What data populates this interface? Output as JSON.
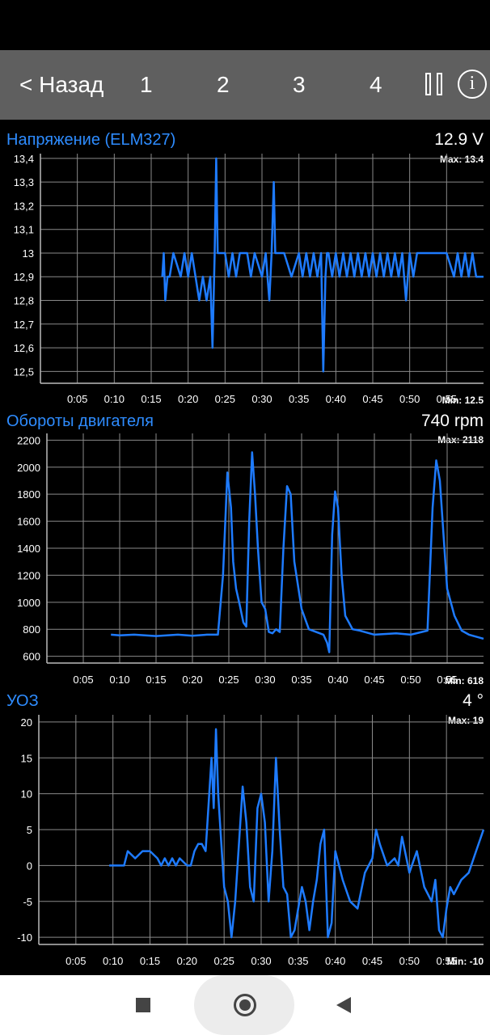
{
  "toolbar": {
    "back_label": "< Назад",
    "tabs": [
      "1",
      "2",
      "3",
      "4"
    ],
    "pause_icon": "pause-icon",
    "info_label": "i"
  },
  "colors": {
    "series": "#1e7bff",
    "title": "#2e8cff",
    "toolbar": "#5f5f5f",
    "grid": "#8a8a8a"
  },
  "panels": [
    {
      "title": "Напряжение (ELM327)",
      "value": "12.9  V",
      "max_label": "Max: 13.4",
      "min_label": "Min: 12.5"
    },
    {
      "title": "Обороты двигателя",
      "value": "740  rpm",
      "max_label": "Max: 2118",
      "min_label": "Min: 618"
    },
    {
      "title": "УОЗ",
      "value": "4  °",
      "max_label": "Max: 19",
      "min_label": "Min: -10"
    }
  ],
  "chart_data": [
    {
      "type": "line",
      "title": "Напряжение (ELM327)",
      "xlim": [
        0,
        60
      ],
      "ylim": [
        12.45,
        13.42
      ],
      "x_ticks": [
        "0:05",
        "0:10",
        "0:15",
        "0:20",
        "0:25",
        "0:30",
        "0:35",
        "0:40",
        "0:45",
        "0:50",
        "0:55"
      ],
      "y_ticks": [
        "12,5",
        "12,6",
        "12,7",
        "12,8",
        "12,9",
        "13",
        "13,1",
        "13,2",
        "13,3",
        "13,4"
      ],
      "y_tick_values": [
        12.5,
        12.6,
        12.7,
        12.8,
        12.9,
        13.0,
        13.1,
        13.2,
        13.3,
        13.4
      ],
      "grid": true,
      "series": [
        {
          "x": [
            16.5,
            16.7,
            16.9,
            17.2,
            17.5,
            18,
            19,
            19.5,
            20,
            20.5,
            21,
            21.5,
            22,
            22.5,
            23,
            23.3,
            23.6,
            23.8,
            24,
            24.2,
            24.5,
            25,
            25.5,
            26,
            26.5,
            27,
            27.5,
            28,
            28.5,
            29,
            30,
            30.5,
            31,
            31.3,
            31.6,
            31.8,
            32,
            32.5,
            33,
            34,
            35,
            35.5,
            36,
            36.5,
            37,
            37.5,
            38,
            38.3,
            38.6,
            38.8,
            39,
            39.5,
            40,
            40.5,
            41,
            41.5,
            42,
            42.5,
            43,
            43.5,
            44,
            44.5,
            45,
            45.5,
            46,
            46.5,
            47,
            47.5,
            48,
            48.5,
            49,
            49.5,
            50,
            50.5,
            51,
            51.5,
            52,
            53,
            54,
            55,
            56,
            56.5,
            57,
            57.5,
            58,
            58.5,
            59,
            60
          ],
          "y": [
            12.9,
            13.0,
            12.8,
            12.9,
            12.9,
            13.0,
            12.9,
            13.0,
            12.9,
            13.0,
            12.9,
            12.8,
            12.9,
            12.8,
            12.9,
            12.6,
            13.0,
            13.4,
            13.0,
            13.0,
            13.0,
            13.0,
            12.9,
            13.0,
            12.9,
            13.0,
            13.0,
            13.0,
            12.9,
            13.0,
            12.9,
            13.0,
            12.8,
            13.0,
            13.3,
            13.0,
            13.0,
            13.0,
            13.0,
            12.9,
            13.0,
            12.9,
            13.0,
            12.9,
            13.0,
            12.9,
            13.0,
            12.5,
            12.9,
            13.0,
            13.0,
            12.9,
            13.0,
            12.9,
            13.0,
            12.9,
            13.0,
            12.9,
            13.0,
            12.9,
            13.0,
            12.9,
            13.0,
            12.9,
            13.0,
            12.9,
            13.0,
            12.9,
            13.0,
            12.9,
            13.0,
            12.8,
            13.0,
            12.9,
            13.0,
            13.0,
            13.0,
            13.0,
            13.0,
            13.0,
            12.9,
            13.0,
            12.9,
            13.0,
            12.9,
            13.0,
            12.9,
            12.9
          ]
        }
      ]
    },
    {
      "type": "line",
      "title": "Обороты двигателя",
      "xlim": [
        0,
        60
      ],
      "ylim": [
        550,
        2250
      ],
      "x_ticks": [
        "0:05",
        "0:10",
        "0:15",
        "0:20",
        "0:25",
        "0:30",
        "0:35",
        "0:40",
        "0:45",
        "0:50",
        "0:55"
      ],
      "y_ticks": [
        "600",
        "800",
        "1000",
        "1200",
        "1400",
        "1600",
        "1800",
        "2000",
        "2200"
      ],
      "y_tick_values": [
        600,
        800,
        1000,
        1200,
        1400,
        1600,
        1800,
        2000,
        2200
      ],
      "grid": true,
      "series": [
        {
          "x": [
            8.8,
            10,
            12,
            15,
            18,
            20,
            22,
            23.5,
            24.2,
            24.8,
            25.3,
            25.6,
            26,
            26.5,
            27,
            27.4,
            27.8,
            28.2,
            28.6,
            29,
            29.5,
            30,
            30.5,
            31,
            31.5,
            32,
            32.5,
            33,
            33.5,
            34,
            35,
            36,
            37,
            38,
            38.5,
            38.8,
            39.2,
            39.6,
            40,
            40.5,
            41,
            42,
            43,
            45,
            48,
            50,
            51.5,
            52.3,
            53,
            53.5,
            54,
            54.5,
            55,
            56,
            57,
            58,
            60
          ],
          "y": [
            760,
            755,
            760,
            750,
            760,
            752,
            760,
            760,
            1200,
            1960,
            1700,
            1300,
            1100,
            980,
            850,
            820,
            1600,
            2110,
            1800,
            1400,
            1000,
            950,
            780,
            770,
            800,
            780,
            1400,
            1860,
            1800,
            1300,
            950,
            800,
            780,
            760,
            700,
            630,
            1500,
            1820,
            1700,
            1200,
            900,
            800,
            790,
            760,
            770,
            760,
            780,
            790,
            1700,
            2050,
            1900,
            1500,
            1100,
            900,
            790,
            760,
            730
          ]
        }
      ]
    },
    {
      "type": "line",
      "title": "УОЗ",
      "xlim": [
        0,
        60
      ],
      "ylim": [
        -11,
        21
      ],
      "x_ticks": [
        "0:05",
        "0:10",
        "0:15",
        "0:20",
        "0:25",
        "0:30",
        "0:35",
        "0:40",
        "0:45",
        "0:50",
        "0:55"
      ],
      "y_ticks": [
        "-10",
        "-5",
        "0",
        "5",
        "10",
        "15",
        "20"
      ],
      "y_tick_values": [
        -10,
        -5,
        0,
        5,
        10,
        15,
        20
      ],
      "grid": true,
      "series": [
        {
          "x": [
            9.5,
            11,
            11.5,
            12,
            13,
            14,
            15,
            16,
            16.5,
            17,
            17.5,
            18,
            18.5,
            19,
            20,
            20.5,
            21,
            21.5,
            22,
            22.5,
            23,
            23.3,
            23.6,
            23.9,
            24.2,
            24.5,
            25,
            25.5,
            26,
            26.5,
            27,
            27.5,
            28,
            28.5,
            29,
            29.5,
            30,
            30.5,
            31,
            31.5,
            32,
            32.5,
            33,
            33.5,
            34,
            34.5,
            35,
            35.5,
            36,
            36.5,
            37,
            37.5,
            38,
            38.5,
            39,
            39.5,
            40,
            41,
            42,
            43,
            44,
            45,
            45.5,
            46,
            47,
            48,
            48.5,
            49,
            50,
            51,
            52,
            53,
            53.5,
            54,
            54.5,
            55,
            55.5,
            56,
            57,
            58,
            59,
            60
          ],
          "y": [
            0,
            0,
            0,
            2,
            1,
            2,
            2,
            1,
            0,
            1,
            0,
            1,
            0,
            1,
            0,
            0,
            2,
            3,
            3,
            2,
            10,
            15,
            8,
            19,
            10,
            5,
            -3,
            -5,
            -10,
            -5,
            3,
            11,
            6,
            -3,
            -5,
            8,
            10,
            6,
            -5,
            2,
            15,
            5,
            -3,
            -4,
            -10,
            -9,
            -6,
            -3,
            -5,
            -9,
            -5,
            -2,
            3,
            5,
            -10,
            -8,
            2,
            -2,
            -5,
            -6,
            -1,
            1,
            5,
            3,
            0,
            1,
            0,
            4,
            -1,
            2,
            -3,
            -5,
            -2,
            -9,
            -10,
            -6,
            -3,
            -4,
            -2,
            -1,
            2,
            5
          ]
        }
      ]
    }
  ]
}
